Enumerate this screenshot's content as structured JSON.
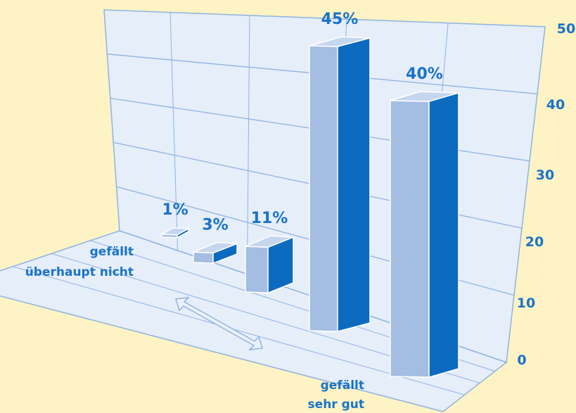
{
  "chart_data": {
    "type": "bar",
    "categories": [
      "",
      "",
      "",
      "",
      ""
    ],
    "values": [
      1,
      3,
      11,
      45,
      40
    ],
    "value_labels": [
      "1%",
      "3%",
      "11%",
      "45%",
      "40%"
    ],
    "ylim": [
      0,
      50
    ],
    "y_ticks": [
      "0",
      "10",
      "20",
      "30",
      "40",
      "50"
    ],
    "left_annotation": [
      "gefällt",
      "überhaupt nicht"
    ],
    "bottom_annotation": [
      "gefällt",
      "sehr gut"
    ],
    "grid": true,
    "style": "3d",
    "colors": {
      "background": "#fdf3c4",
      "panel": "#e6eefa",
      "grid": "#8fb3e0",
      "bar_front": "#a4bde2",
      "bar_side": "#0d6bbf",
      "bar_top": "#c5d6ef",
      "text": "#1a73c8"
    }
  }
}
